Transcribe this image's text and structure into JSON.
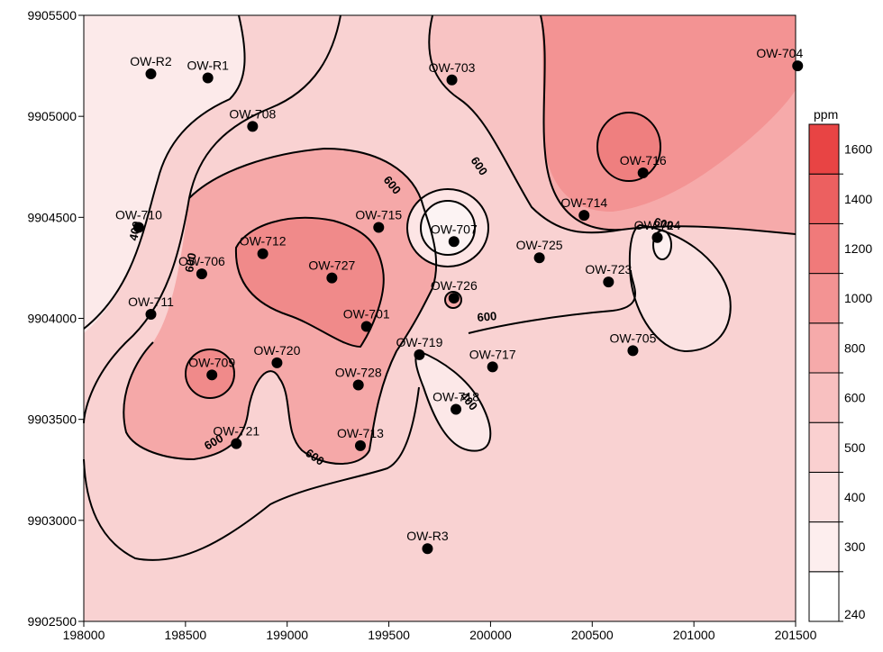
{
  "map": {
    "x_ticks": [
      "198000",
      "198500",
      "199000",
      "199500",
      "200000",
      "200500",
      "201000",
      "201500"
    ],
    "y_ticks": [
      "9905500",
      "9905000",
      "9904500",
      "9904000",
      "9903500",
      "9903000",
      "9902500"
    ],
    "wells": [
      {
        "name": "OW-R2",
        "x": 198330,
        "y": 9905210
      },
      {
        "name": "OW-R1",
        "x": 198610,
        "y": 9905190
      },
      {
        "name": "OW-703",
        "x": 199810,
        "y": 9905180
      },
      {
        "name": "OW-704",
        "x": 201510,
        "y": 9905250
      },
      {
        "name": "OW-708",
        "x": 198830,
        "y": 9904950
      },
      {
        "name": "OW-716",
        "x": 200750,
        "y": 9904720
      },
      {
        "name": "OW-714",
        "x": 200460,
        "y": 9904510
      },
      {
        "name": "OW-710",
        "x": 198270,
        "y": 9904450
      },
      {
        "name": "OW-715",
        "x": 199450,
        "y": 9904450
      },
      {
        "name": "OW-707",
        "x": 199820,
        "y": 9904380
      },
      {
        "name": "OW-724",
        "x": 200820,
        "y": 9904400
      },
      {
        "name": "OW-712",
        "x": 198880,
        "y": 9904320
      },
      {
        "name": "OW-706",
        "x": 198580,
        "y": 9904220
      },
      {
        "name": "OW-725",
        "x": 200240,
        "y": 9904300
      },
      {
        "name": "OW-727",
        "x": 199220,
        "y": 9904200
      },
      {
        "name": "OW-723",
        "x": 200580,
        "y": 9904180
      },
      {
        "name": "OW-726",
        "x": 199820,
        "y": 9904100
      },
      {
        "name": "OW-711",
        "x": 198330,
        "y": 9904020
      },
      {
        "name": "OW-701",
        "x": 199390,
        "y": 9903960
      },
      {
        "name": "OW-705",
        "x": 200700,
        "y": 9903840
      },
      {
        "name": "OW-719",
        "x": 199650,
        "y": 9903820
      },
      {
        "name": "OW-720",
        "x": 198950,
        "y": 9903780
      },
      {
        "name": "OW-717",
        "x": 200010,
        "y": 9903760
      },
      {
        "name": "OW-709",
        "x": 198630,
        "y": 9903720
      },
      {
        "name": "OW-728",
        "x": 199350,
        "y": 9903670
      },
      {
        "name": "OW-718",
        "x": 199830,
        "y": 9903550
      },
      {
        "name": "OW-721",
        "x": 198750,
        "y": 9903380
      },
      {
        "name": "OW-713",
        "x": 199360,
        "y": 9903370
      },
      {
        "name": "OW-R3",
        "x": 199690,
        "y": 9902860
      }
    ],
    "contour_labels": [
      "600",
      "600",
      "600",
      "600",
      "400",
      "600",
      "600",
      "400",
      "600",
      "600"
    ]
  },
  "legend": {
    "title": "ppm",
    "levels": [
      "240",
      "300",
      "400",
      "500",
      "600",
      "800",
      "1000",
      "1200",
      "1400",
      "1600"
    ]
  }
}
